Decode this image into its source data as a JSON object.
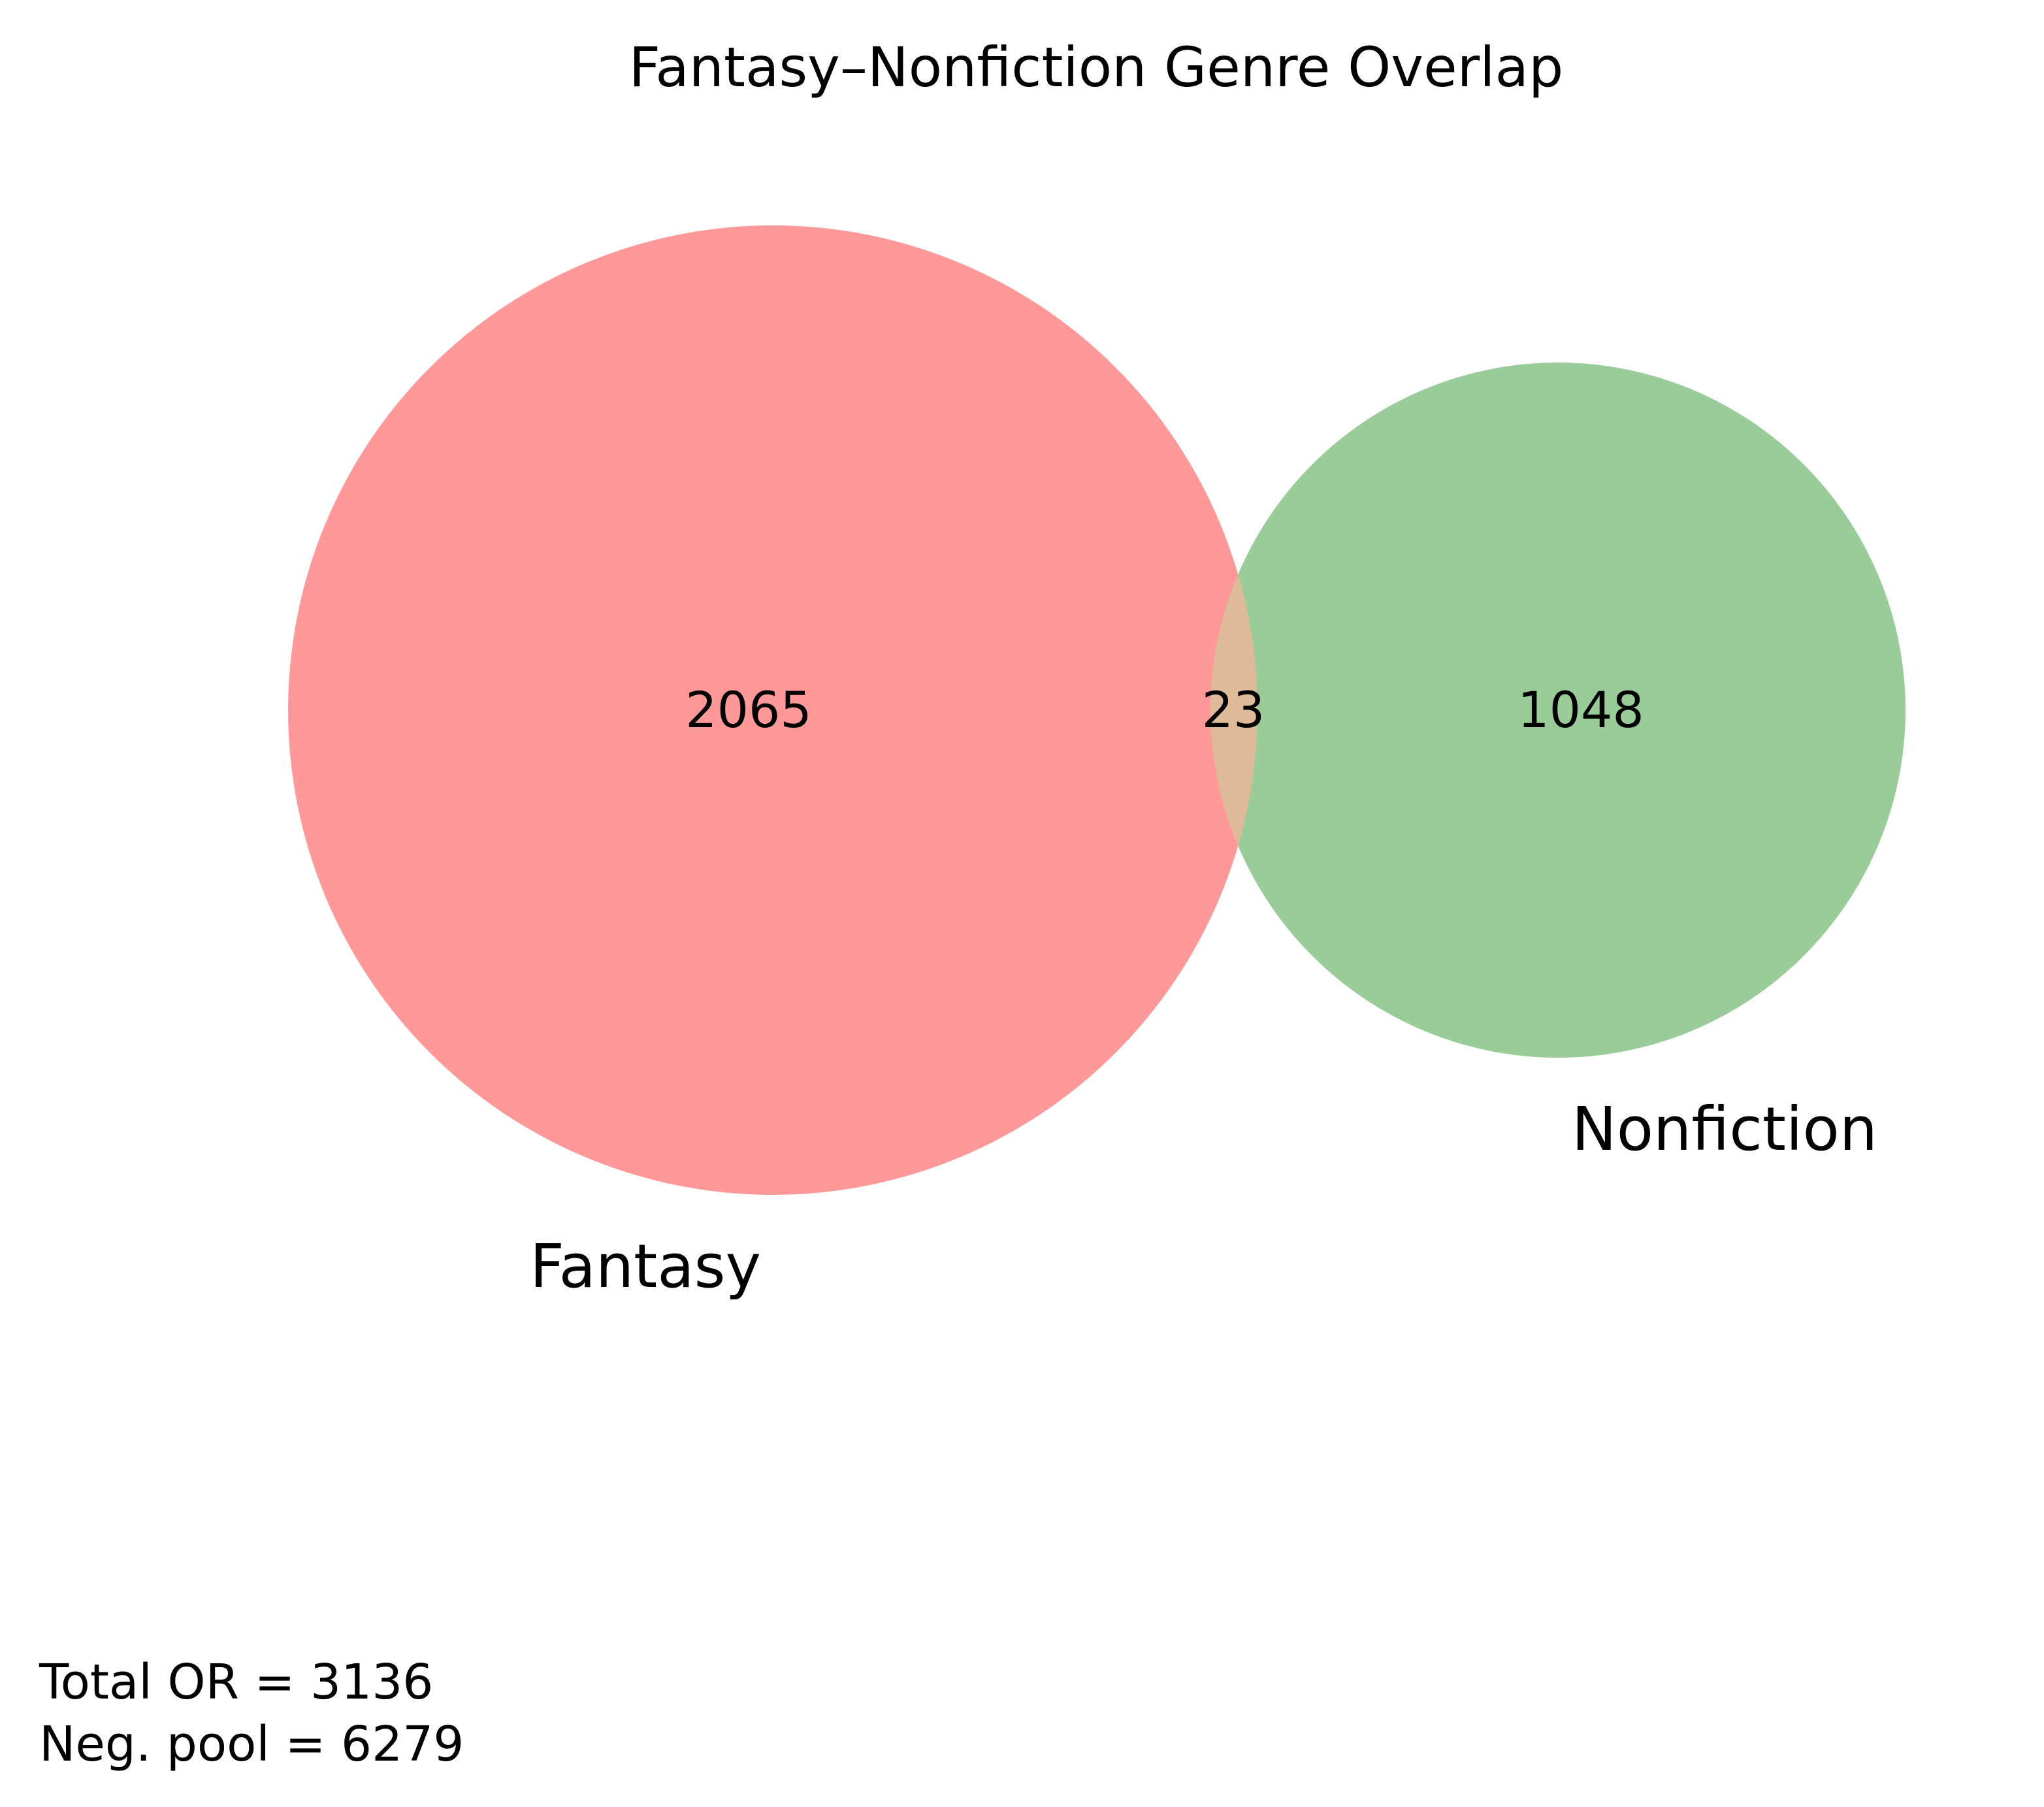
{
  "title": "Fantasy–Nonfiction Genre Overlap",
  "chart_data": {
    "type": "venn",
    "sets": [
      {
        "name": "Fantasy",
        "only_count": "2065",
        "color": "#ff9999"
      },
      {
        "name": "Nonfiction",
        "only_count": "1048",
        "color": "#99cc99"
      }
    ],
    "intersection": {
      "count": "23",
      "color": "#ddbb99"
    }
  },
  "notes": {
    "line1": "Total OR = 3136",
    "line2": "Neg. pool = 6279"
  }
}
